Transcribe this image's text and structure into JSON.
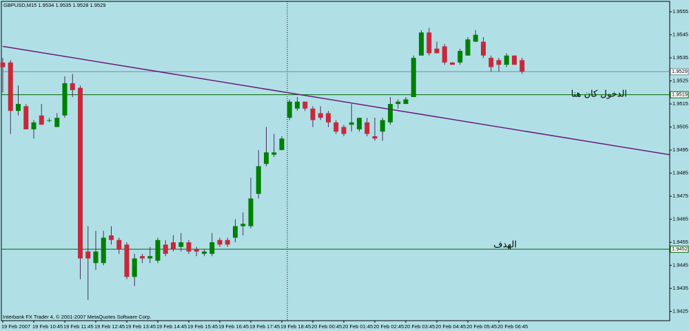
{
  "chart_data": {
    "type": "candlestick",
    "title": "GBPUSD,M15  1.9534 1.9535 1.9528 1.9529",
    "footer": "Interbank FX Trader 4, © 2001-2007 MetaQuotes Software Corp.",
    "categories": [
      "19 Feb 2007",
      null,
      null,
      null,
      "19 Feb 10:45",
      null,
      null,
      null,
      "19 Feb 11:45",
      null,
      null,
      null,
      "19 Feb 12:45",
      null,
      null,
      null,
      "19 Feb 13:45",
      null,
      null,
      null,
      "19 Feb 14:45",
      null,
      null,
      null,
      "19 Feb 15:45",
      null,
      null,
      null,
      "19 Feb 16:45",
      null,
      null,
      null,
      "19 Feb 17:45",
      null,
      null,
      null,
      "19 Feb 18:45",
      null,
      null,
      null,
      "20 Feb 00:45",
      null,
      null,
      null,
      "20 Feb 01:45",
      null,
      null,
      null,
      "20 Feb 02:45",
      null,
      null,
      null,
      "20 Feb 03:45",
      null,
      null,
      null,
      "20 Feb 04:45",
      null,
      null,
      null,
      "20 Feb 05:45",
      null,
      null,
      null,
      "20 Feb 06:45",
      null,
      null,
      null
    ],
    "open": [
      1.9533,
      1.9533,
      1.9512,
      1.9514,
      1.9504,
      1.951,
      1.9508,
      1.9505,
      1.951,
      1.9524,
      1.9522,
      1.9451,
      1.9446,
      1.9446,
      1.9458,
      1.9456,
      1.9454,
      1.944,
      1.9449,
      1.9448,
      1.9447,
      1.9454,
      1.9455,
      1.9453,
      1.9455,
      1.9452,
      1.945,
      1.945,
      1.9456,
      1.9456,
      1.9457,
      1.9462,
      1.9462,
      1.9476,
      1.9489,
      1.9493,
      1.9495,
      1.9509,
      1.9513,
      1.9516,
      1.9513,
      1.9511,
      1.9511,
      1.9507,
      1.9505,
      1.9506,
      1.9504,
      1.9507,
      1.9501,
      1.9503,
      1.9507,
      1.9515,
      1.9515,
      1.9518,
      1.9536,
      1.9546,
      1.9539,
      1.954,
      1.9533,
      1.9533,
      1.9536,
      1.9542,
      1.9542,
      1.9535,
      1.9534,
      1.9532,
      1.9536,
      1.9534
    ],
    "high": [
      1.9535,
      1.9534,
      1.9523,
      1.9515,
      1.9508,
      1.9515,
      1.9509,
      1.9511,
      1.9527,
      1.9528,
      1.9523,
      1.9462,
      1.946,
      1.946,
      1.9462,
      1.9457,
      1.9455,
      1.945,
      1.945,
      1.9453,
      1.9457,
      1.9456,
      1.9458,
      1.9459,
      1.9456,
      1.9453,
      1.9452,
      1.9459,
      1.9457,
      1.9457,
      1.9465,
      1.9468,
      1.9483,
      1.9495,
      1.9505,
      1.9502,
      1.9501,
      1.9517,
      1.9518,
      1.9516,
      1.9514,
      1.9514,
      1.9512,
      1.9508,
      1.9506,
      1.9515,
      1.9509,
      1.9509,
      1.9509,
      1.9509,
      1.9518,
      1.9517,
      1.9518,
      1.9536,
      1.9547,
      1.9548,
      1.9542,
      1.9541,
      1.9533,
      1.9539,
      1.9544,
      1.9547,
      1.9544,
      1.9536,
      1.9535,
      1.9537,
      1.9536,
      1.9535
    ],
    "low": [
      1.952,
      1.9502,
      1.951,
      1.9504,
      1.95,
      1.9506,
      1.9507,
      1.9505,
      1.9509,
      1.9518,
      1.9439,
      1.943,
      1.9443,
      1.9445,
      1.9454,
      1.945,
      1.9439,
      1.9436,
      1.9446,
      1.9446,
      1.9446,
      1.9449,
      1.9451,
      1.9451,
      1.945,
      1.9449,
      1.9449,
      1.9449,
      1.9453,
      1.9453,
      1.9455,
      1.9458,
      1.9461,
      1.9474,
      1.9488,
      1.9492,
      1.9495,
      1.9508,
      1.9512,
      1.9512,
      1.9505,
      1.9508,
      1.9505,
      1.9502,
      1.9501,
      1.9503,
      1.9503,
      1.9501,
      1.9499,
      1.9499,
      1.9506,
      1.9513,
      1.9515,
      1.9518,
      1.9536,
      1.9536,
      1.9537,
      1.9532,
      1.9532,
      1.9532,
      1.9536,
      1.9542,
      1.9535,
      1.9529,
      1.9529,
      1.9531,
      1.9532,
      1.9528
    ],
    "close": [
      1.9531,
      1.9512,
      1.9515,
      1.9504,
      1.9507,
      1.9506,
      1.9508,
      1.9509,
      1.9524,
      1.9521,
      1.9448,
      1.9448,
      1.9451,
      1.9457,
      1.9456,
      1.9452,
      1.944,
      1.9448,
      1.9448,
      1.9449,
      1.9456,
      1.945,
      1.9452,
      1.9455,
      1.9451,
      1.9451,
      1.9451,
      1.9455,
      1.9454,
      1.9454,
      1.9462,
      1.9463,
      1.9474,
      1.9488,
      1.9494,
      1.9494,
      1.95,
      1.9516,
      1.9516,
      1.9513,
      1.9508,
      1.9509,
      1.9507,
      1.9503,
      1.9502,
      1.9507,
      1.9509,
      1.9502,
      1.95,
      1.9508,
      1.9515,
      1.9516,
      1.9517,
      1.9535,
      1.9546,
      1.9537,
      1.9537,
      1.9533,
      1.9532,
      1.9538,
      1.9543,
      1.9545,
      1.9536,
      1.9531,
      1.9532,
      1.9536,
      1.9532,
      1.9529
    ],
    "up_color": "#008000",
    "down_color": "#c8283a",
    "wick_color": "#4a2a5a",
    "ylim": [
      1.9421,
      1.95595
    ],
    "yticks": [
      1.9555,
      1.9545,
      1.9535,
      1.9525,
      1.9515,
      1.9505,
      1.9495,
      1.9485,
      1.9475,
      1.9465,
      1.9455,
      1.9445,
      1.9435,
      1.9425
    ],
    "hlines": [
      {
        "value": 1.9529,
        "color": "#778899"
      },
      {
        "value": 1.9519,
        "color": "#006400"
      },
      {
        "value": 1.9452,
        "color": "#006400"
      }
    ],
    "trendline": {
      "x": [
        0,
        86
      ],
      "y": [
        1.954,
        1.9493
      ],
      "color": "#6a1a7a"
    },
    "annotations": [
      "الدخول كان هنا",
      "الهدف"
    ]
  }
}
